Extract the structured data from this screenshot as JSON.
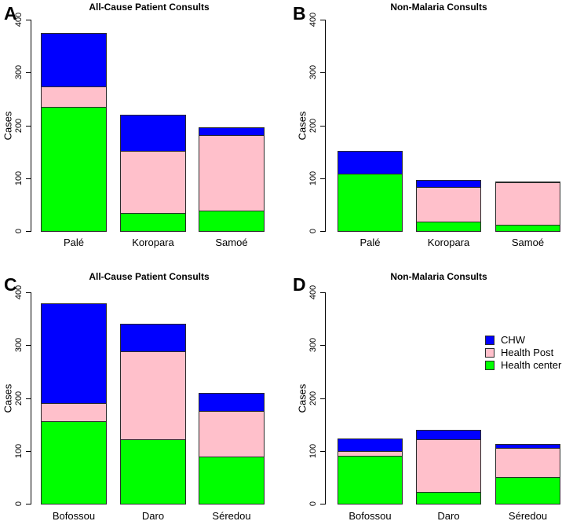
{
  "figure": {
    "background": "#ffffff",
    "ylabel": "Cases",
    "yticks": [
      0,
      100,
      200,
      300,
      400
    ],
    "ylim": [
      0,
      400
    ],
    "colors": {
      "chw": "#0000ff",
      "health_post": "#ffc0cb",
      "health_center": "#00ff00",
      "bar_border": "#2b2b2b"
    },
    "panel_letters": [
      "A",
      "B",
      "C",
      "D"
    ],
    "legend": {
      "entries": [
        {
          "label": "CHW",
          "color_key": "chw"
        },
        {
          "label": "Health Post",
          "color_key": "health_post"
        },
        {
          "label": "Health center",
          "color_key": "health_center"
        }
      ]
    }
  },
  "chart_data": [
    {
      "panel": "A",
      "type": "bar",
      "stacked": true,
      "title": "All-Cause Patient Consults",
      "xlabel": "",
      "ylabel": "Cases",
      "ylim": [
        0,
        400
      ],
      "yticks": [
        0,
        100,
        200,
        300,
        400
      ],
      "categories": [
        "Palé",
        "Koropara",
        "Samoé"
      ],
      "series": [
        {
          "name": "Health center",
          "color_key": "health_center",
          "values": [
            235,
            34,
            38
          ]
        },
        {
          "name": "Health Post",
          "color_key": "health_post",
          "values": [
            38,
            118,
            144
          ]
        },
        {
          "name": "CHW",
          "color_key": "chw",
          "values": [
            102,
            68,
            15
          ]
        }
      ]
    },
    {
      "panel": "B",
      "type": "bar",
      "stacked": true,
      "title": "Non-Malaria Consults",
      "xlabel": "",
      "ylabel": "Cases",
      "ylim": [
        0,
        400
      ],
      "yticks": [
        0,
        100,
        200,
        300,
        400
      ],
      "categories": [
        "Palé",
        "Koropara",
        "Samoé"
      ],
      "series": [
        {
          "name": "Health center",
          "color_key": "health_center",
          "values": [
            108,
            18,
            12
          ]
        },
        {
          "name": "Health Post",
          "color_key": "health_post",
          "values": [
            0,
            66,
            80
          ]
        },
        {
          "name": "CHW",
          "color_key": "chw",
          "values": [
            44,
            12,
            2
          ]
        }
      ]
    },
    {
      "panel": "C",
      "type": "bar",
      "stacked": true,
      "title": "All-Cause Patient Consults",
      "xlabel": "",
      "ylabel": "Cases",
      "ylim": [
        0,
        400
      ],
      "yticks": [
        0,
        100,
        200,
        300,
        400
      ],
      "categories": [
        "Bofossou",
        "Daro",
        "Séredou"
      ],
      "series": [
        {
          "name": "Health center",
          "color_key": "health_center",
          "values": [
            156,
            122,
            89
          ]
        },
        {
          "name": "Health Post",
          "color_key": "health_post",
          "values": [
            35,
            166,
            87
          ]
        },
        {
          "name": "CHW",
          "color_key": "chw",
          "values": [
            188,
            52,
            33
          ]
        }
      ]
    },
    {
      "panel": "D",
      "type": "bar",
      "stacked": true,
      "title": "Non-Malaria Consults",
      "xlabel": "",
      "ylabel": "Cases",
      "ylim": [
        0,
        400
      ],
      "yticks": [
        0,
        100,
        200,
        300,
        400
      ],
      "categories": [
        "Bofossou",
        "Daro",
        "Séredou"
      ],
      "series": [
        {
          "name": "Health center",
          "color_key": "health_center",
          "values": [
            91,
            22,
            50
          ]
        },
        {
          "name": "Health Post",
          "color_key": "health_post",
          "values": [
            8,
            100,
            55
          ]
        },
        {
          "name": "CHW",
          "color_key": "chw",
          "values": [
            24,
            18,
            8
          ]
        }
      ]
    }
  ]
}
